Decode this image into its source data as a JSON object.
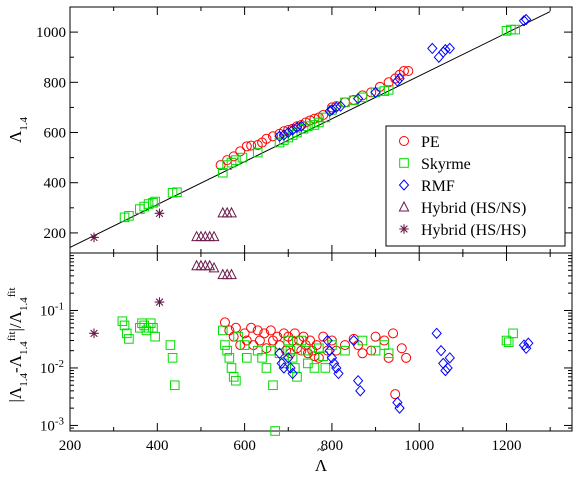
{
  "chart_data": [
    {
      "type": "scatter",
      "panel": "top",
      "ylabel": "Λ1.4",
      "xlim": [
        200,
        1350
      ],
      "ylim": [
        120,
        1100
      ],
      "yticks": [
        200,
        400,
        600,
        800,
        1000
      ],
      "legend_position": "bottom-right",
      "colors": {
        "PE": "#ff0000",
        "Skyrme": "#00dd00",
        "RMF": "#0000ff",
        "HSNS": "#6b1a4a",
        "HSHS": "#6b1a4a"
      },
      "fit_line": {
        "x": [
          200,
          1300
        ],
        "y": [
          142,
          1082
        ]
      },
      "series": [
        {
          "key": "PE",
          "name": "PE",
          "marker": "circle",
          "points": [
            [
              545,
              470
            ],
            [
              560,
              490
            ],
            [
              575,
              505
            ],
            [
              590,
              525
            ],
            [
              605,
              545
            ],
            [
              615,
              548
            ],
            [
              630,
              550
            ],
            [
              640,
              560
            ],
            [
              650,
              575
            ],
            [
              665,
              585
            ],
            [
              680,
              595
            ],
            [
              690,
              605
            ],
            [
              700,
              610
            ],
            [
              710,
              615
            ],
            [
              720,
              625
            ],
            [
              730,
              630
            ],
            [
              740,
              640
            ],
            [
              750,
              648
            ],
            [
              760,
              655
            ],
            [
              770,
              660
            ],
            [
              780,
              670
            ],
            [
              800,
              700
            ],
            [
              810,
              705
            ],
            [
              830,
              720
            ],
            [
              850,
              730
            ],
            [
              870,
              748
            ],
            [
              890,
              760
            ],
            [
              910,
              782
            ],
            [
              930,
              800
            ],
            [
              945,
              815
            ],
            [
              955,
              830
            ],
            [
              965,
              845
            ],
            [
              975,
              845
            ]
          ]
        },
        {
          "key": "Skyrme",
          "name": "Skyrme",
          "marker": "square",
          "points": [
            [
              325,
              262
            ],
            [
              335,
              268
            ],
            [
              360,
              295
            ],
            [
              370,
              305
            ],
            [
              380,
              315
            ],
            [
              390,
              320
            ],
            [
              395,
              325
            ],
            [
              435,
              360
            ],
            [
              445,
              362
            ],
            [
              550,
              440
            ],
            [
              560,
              470
            ],
            [
              570,
              480
            ],
            [
              580,
              490
            ],
            [
              595,
              500
            ],
            [
              630,
              520
            ],
            [
              680,
              560
            ],
            [
              690,
              570
            ],
            [
              700,
              580
            ],
            [
              710,
              590
            ],
            [
              720,
              600
            ],
            [
              735,
              615
            ],
            [
              745,
              625
            ],
            [
              760,
              630
            ],
            [
              770,
              640
            ],
            [
              785,
              660
            ],
            [
              800,
              690
            ],
            [
              830,
              720
            ],
            [
              850,
              728
            ],
            [
              870,
              740
            ],
            [
              900,
              760
            ],
            [
              920,
              765
            ],
            [
              930,
              770
            ],
            [
              1200,
              1005
            ],
            [
              1210,
              1010
            ],
            [
              1220,
              1010
            ]
          ]
        },
        {
          "key": "RMF",
          "name": "RMF",
          "marker": "diamond",
          "points": [
            [
              680,
              585
            ],
            [
              690,
              590
            ],
            [
              700,
              600
            ],
            [
              710,
              610
            ],
            [
              720,
              620
            ],
            [
              730,
              625
            ],
            [
              795,
              685
            ],
            [
              800,
              690
            ],
            [
              810,
              700
            ],
            [
              820,
              705
            ],
            [
              860,
              735
            ],
            [
              900,
              760
            ],
            [
              950,
              805
            ],
            [
              955,
              815
            ],
            [
              1030,
              935
            ],
            [
              1045,
              900
            ],
            [
              1055,
              920
            ],
            [
              1060,
              930
            ],
            [
              1070,
              935
            ],
            [
              1240,
              1045
            ],
            [
              1245,
              1050
            ]
          ]
        },
        {
          "key": "HSNS",
          "name": "Hybrid (HS/NS)",
          "marker": "triangle",
          "points": [
            [
              490,
              185
            ],
            [
              500,
              185
            ],
            [
              510,
              185
            ],
            [
              520,
              185
            ],
            [
              530,
              185
            ],
            [
              550,
              280
            ],
            [
              560,
              280
            ],
            [
              570,
              280
            ]
          ]
        },
        {
          "key": "HSHS",
          "name": "Hybrid (HS/HS)",
          "marker": "star",
          "points": [
            [
              255,
              182
            ],
            [
              405,
              278
            ]
          ]
        }
      ]
    },
    {
      "type": "scatter",
      "panel": "bottom",
      "xlabel": "Λ̃",
      "ylabel": "|Λ1.4-Λ1.4fit|/Λ1.4fit",
      "xlim": [
        200,
        1350
      ],
      "ylim": [
        0.0008,
        1
      ],
      "yscale": "log",
      "xticks": [
        200,
        400,
        600,
        800,
        1000,
        1200
      ],
      "yticks": [
        0.001,
        0.01,
        0.1
      ],
      "colors": {
        "PE": "#ff0000",
        "Skyrme": "#00dd00",
        "RMF": "#0000ff",
        "HSNS": "#6b1a4a",
        "HSHS": "#6b1a4a"
      },
      "series": [
        {
          "key": "PE",
          "marker": "circle",
          "points": [
            [
              555,
              0.062
            ],
            [
              565,
              0.045
            ],
            [
              575,
              0.035
            ],
            [
              580,
              0.05
            ],
            [
              590,
              0.025
            ],
            [
              600,
              0.04
            ],
            [
              605,
              0.03
            ],
            [
              615,
              0.05
            ],
            [
              620,
              0.025
            ],
            [
              630,
              0.045
            ],
            [
              635,
              0.03
            ],
            [
              645,
              0.04
            ],
            [
              650,
              0.022
            ],
            [
              660,
              0.045
            ],
            [
              665,
              0.03
            ],
            [
              675,
              0.035
            ],
            [
              680,
              0.025
            ],
            [
              690,
              0.04
            ],
            [
              695,
              0.02
            ],
            [
              700,
              0.035
            ],
            [
              705,
              0.018
            ],
            [
              710,
              0.03
            ],
            [
              715,
              0.04
            ],
            [
              720,
              0.022
            ],
            [
              725,
              0.03
            ],
            [
              730,
              0.02
            ],
            [
              735,
              0.035
            ],
            [
              740,
              0.025
            ],
            [
              745,
              0.018
            ],
            [
              750,
              0.03
            ],
            [
              755,
              0.02
            ],
            [
              760,
              0.016
            ],
            [
              765,
              0.025
            ],
            [
              770,
              0.015
            ],
            [
              780,
              0.035
            ],
            [
              790,
              0.02
            ],
            [
              800,
              0.03
            ],
            [
              810,
              0.02
            ],
            [
              830,
              0.025
            ],
            [
              850,
              0.032
            ],
            [
              860,
              0.025
            ],
            [
              870,
              0.018
            ],
            [
              890,
              0.02
            ],
            [
              900,
              0.035
            ],
            [
              920,
              0.03
            ],
            [
              930,
              0.015
            ],
            [
              940,
              0.04
            ],
            [
              945,
              0.0035
            ],
            [
              960,
              0.022
            ],
            [
              970,
              0.015
            ]
          ]
        },
        {
          "key": "Skyrme",
          "marker": "square",
          "points": [
            [
              320,
              0.065
            ],
            [
              325,
              0.055
            ],
            [
              330,
              0.04
            ],
            [
              335,
              0.032
            ],
            [
              360,
              0.05
            ],
            [
              365,
              0.06
            ],
            [
              370,
              0.055
            ],
            [
              375,
              0.045
            ],
            [
              380,
              0.05
            ],
            [
              385,
              0.06
            ],
            [
              390,
              0.05
            ],
            [
              395,
              0.035
            ],
            [
              430,
              0.025
            ],
            [
              435,
              0.015
            ],
            [
              440,
              0.005
            ],
            [
              550,
              0.045
            ],
            [
              555,
              0.025
            ],
            [
              560,
              0.02
            ],
            [
              565,
              0.015
            ],
            [
              570,
              0.01
            ],
            [
              575,
              0.007
            ],
            [
              580,
              0.006
            ],
            [
              585,
              0.035
            ],
            [
              600,
              0.025
            ],
            [
              605,
              0.015
            ],
            [
              630,
              0.02
            ],
            [
              640,
              0.015
            ],
            [
              650,
              0.01
            ],
            [
              660,
              0.02
            ],
            [
              665,
              0.005
            ],
            [
              670,
              0.0008
            ],
            [
              680,
              0.018
            ],
            [
              690,
              0.012
            ],
            [
              700,
              0.03
            ],
            [
              705,
              0.02
            ],
            [
              710,
              0.015
            ],
            [
              715,
              0.01
            ],
            [
              720,
              0.007
            ],
            [
              730,
              0.03
            ],
            [
              740,
              0.02
            ],
            [
              745,
              0.012
            ],
            [
              760,
              0.01
            ],
            [
              770,
              0.022
            ],
            [
              780,
              0.016
            ],
            [
              785,
              0.01
            ],
            [
              800,
              0.025
            ],
            [
              830,
              0.02
            ],
            [
              870,
              0.03
            ],
            [
              900,
              0.02
            ],
            [
              920,
              0.025
            ],
            [
              930,
              0.018
            ],
            [
              1200,
              0.03
            ],
            [
              1205,
              0.028
            ],
            [
              1215,
              0.04
            ]
          ]
        },
        {
          "key": "RMF",
          "marker": "diamond",
          "points": [
            [
              680,
              0.018
            ],
            [
              685,
              0.012
            ],
            [
              690,
              0.01
            ],
            [
              700,
              0.015
            ],
            [
              705,
              0.01
            ],
            [
              710,
              0.008
            ],
            [
              790,
              0.03
            ],
            [
              795,
              0.02
            ],
            [
              800,
              0.015
            ],
            [
              805,
              0.012
            ],
            [
              810,
              0.01
            ],
            [
              815,
              0.008
            ],
            [
              850,
              0.03
            ],
            [
              860,
              0.006
            ],
            [
              865,
              0.004
            ],
            [
              950,
              0.0025
            ],
            [
              955,
              0.002
            ],
            [
              1040,
              0.04
            ],
            [
              1050,
              0.02
            ],
            [
              1055,
              0.012
            ],
            [
              1060,
              0.009
            ],
            [
              1065,
              0.01
            ],
            [
              1070,
              0.015
            ],
            [
              1240,
              0.025
            ],
            [
              1245,
              0.022
            ],
            [
              1250,
              0.027
            ]
          ]
        },
        {
          "key": "HSNS",
          "marker": "triangle",
          "points": [
            [
              490,
              0.6
            ],
            [
              500,
              0.6
            ],
            [
              510,
              0.6
            ],
            [
              520,
              0.6
            ],
            [
              530,
              0.55
            ],
            [
              550,
              0.42
            ],
            [
              560,
              0.42
            ],
            [
              570,
              0.42
            ]
          ]
        },
        {
          "key": "HSHS",
          "marker": "star",
          "points": [
            [
              255,
              0.04
            ],
            [
              405,
              0.14
            ]
          ]
        }
      ]
    }
  ]
}
